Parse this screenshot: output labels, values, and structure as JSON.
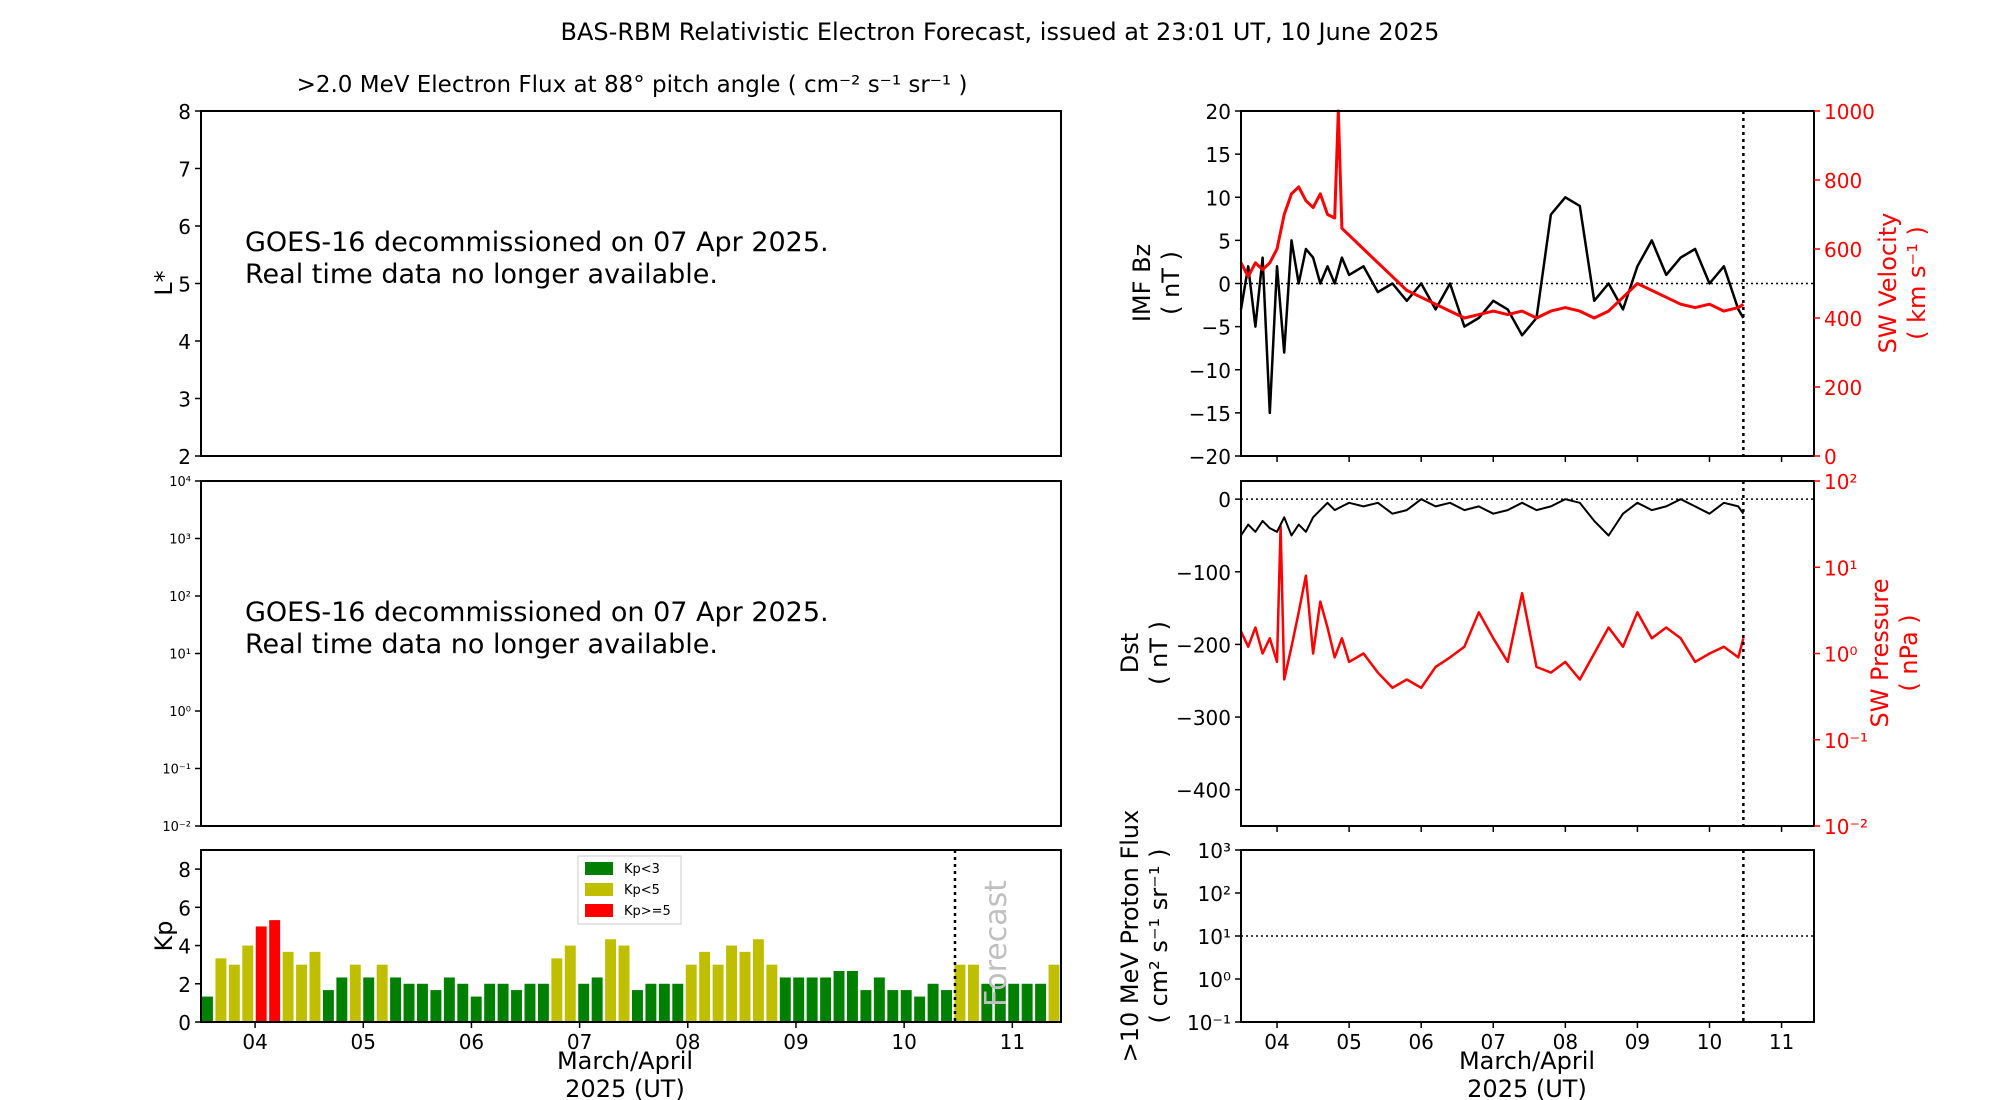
{
  "figure": {
    "title": "BAS-RBM Relativistic Electron Forecast, issued at 23:01 UT, 10 June 2025",
    "colors": {
      "black": "#000000",
      "red": "#ff0000",
      "green": "#008000",
      "yellow": "#bfbf00",
      "annotation": "#c0c0c0"
    }
  },
  "chart_data": [
    {
      "id": "flux_map",
      "type": "heatmap",
      "title": ">2.0 MeV Electron Flux at 88° pitch angle ( cm⁻² s⁻¹ sr⁻¹ )",
      "ylabel": "L*",
      "ylim": [
        2,
        8
      ],
      "yticks": [
        "2",
        "3",
        "4",
        "5",
        "6",
        "7",
        "8"
      ],
      "message": [
        "GOES-16 decommissioned on 07 Apr 2025.",
        "Real time data no longer available."
      ]
    },
    {
      "id": "flux_log",
      "type": "line",
      "yscale": "log",
      "ylim": [
        0.01,
        10000
      ],
      "yticks": [
        "10⁻²",
        "10⁻¹",
        "10⁰",
        "10¹",
        "10²",
        "10³",
        "10⁴"
      ],
      "message": [
        "GOES-16 decommissioned on 07 Apr 2025.",
        "Real time data no longer available."
      ]
    },
    {
      "id": "kp",
      "type": "bar",
      "ylabel": "Kp",
      "ylim": [
        0,
        9
      ],
      "yticks": [
        "0",
        "2",
        "4",
        "6",
        "8"
      ],
      "xlim": [
        3.5,
        11.45
      ],
      "xticks": [
        "04",
        "05",
        "06",
        "07",
        "08",
        "09",
        "10",
        "11"
      ],
      "xlabel": [
        "March/April",
        "2025 (UT)"
      ],
      "forecast_start": 10.47,
      "annotation": "Forecast",
      "legend": {
        "placement": "upper-center",
        "entries": [
          "Kp<3",
          "Kp<5",
          "Kp>=5"
        ]
      },
      "values": [
        1.33,
        3.33,
        3.0,
        4.0,
        5.0,
        5.33,
        3.67,
        3.0,
        3.67,
        1.67,
        2.33,
        3.0,
        2.33,
        3.0,
        2.33,
        2.0,
        2.0,
        1.67,
        2.33,
        2.0,
        1.33,
        2.0,
        2.0,
        1.67,
        2.0,
        2.0,
        3.33,
        4.0,
        2.0,
        2.33,
        4.33,
        4.0,
        1.67,
        2.0,
        2.0,
        2.0,
        3.0,
        3.67,
        3.0,
        4.0,
        3.67,
        4.33,
        3.0,
        2.33,
        2.33,
        2.33,
        2.33,
        2.67,
        2.67,
        1.67,
        2.33,
        1.67,
        1.67,
        1.33,
        2.0,
        1.67,
        3.0,
        3.0,
        2.0,
        2.0,
        2.0,
        2.0,
        2.0,
        3.0
      ]
    },
    {
      "id": "imf_sw",
      "type": "line",
      "ylabel": [
        "IMF Bz",
        "( nT )"
      ],
      "ylim": [
        -20,
        20
      ],
      "yticks": [
        "−20",
        "−15",
        "−10",
        "−5",
        "0",
        "5",
        "10",
        "15",
        "20"
      ],
      "y2label": [
        "SW Velocity",
        "( km s⁻¹ )"
      ],
      "y2lim": [
        0,
        1000
      ],
      "y2ticks": [
        "0",
        "200",
        "400",
        "600",
        "800",
        "1000"
      ],
      "xlim": [
        3.5,
        11.45
      ],
      "forecast_start": 10.47,
      "series": [
        {
          "role": "bz",
          "color": "#000000",
          "x": [
            3.5,
            3.6,
            3.7,
            3.8,
            3.9,
            4.0,
            4.1,
            4.2,
            4.3,
            4.4,
            4.5,
            4.6,
            4.7,
            4.8,
            4.9,
            5.0,
            5.2,
            5.4,
            5.6,
            5.8,
            6.0,
            6.2,
            6.4,
            6.6,
            6.8,
            7.0,
            7.2,
            7.4,
            7.6,
            7.8,
            8.0,
            8.2,
            8.4,
            8.6,
            8.8,
            9.0,
            9.2,
            9.4,
            9.6,
            9.8,
            10.0,
            10.2,
            10.4,
            10.47
          ],
          "y": [
            -3,
            2,
            -5,
            3,
            -15,
            2,
            -8,
            5,
            0,
            4,
            3,
            0,
            2,
            0,
            3,
            1,
            2,
            -1,
            0,
            -2,
            0,
            -3,
            0,
            -5,
            -4,
            -2,
            -3,
            -6,
            -4,
            8,
            10,
            9,
            -2,
            0,
            -3,
            2,
            5,
            1,
            3,
            4,
            0,
            2,
            -3,
            -4
          ]
        },
        {
          "role": "velocity",
          "color": "#ff0000",
          "x": [
            3.5,
            3.6,
            3.7,
            3.8,
            3.9,
            4.0,
            4.1,
            4.2,
            4.3,
            4.4,
            4.5,
            4.6,
            4.7,
            4.8,
            4.85,
            4.9,
            5.0,
            5.2,
            5.4,
            5.6,
            5.8,
            6.0,
            6.2,
            6.4,
            6.6,
            6.8,
            7.0,
            7.2,
            7.4,
            7.6,
            7.8,
            8.0,
            8.2,
            8.4,
            8.6,
            8.8,
            9.0,
            9.2,
            9.4,
            9.6,
            9.8,
            10.0,
            10.2,
            10.4,
            10.47
          ],
          "y": [
            560,
            520,
            560,
            540,
            560,
            600,
            700,
            760,
            780,
            740,
            720,
            760,
            700,
            690,
            1000,
            660,
            640,
            600,
            560,
            520,
            480,
            460,
            440,
            420,
            400,
            410,
            420,
            410,
            420,
            400,
            420,
            430,
            420,
            400,
            420,
            460,
            500,
            480,
            460,
            440,
            430,
            440,
            420,
            430,
            440
          ]
        }
      ]
    },
    {
      "id": "dst_pressure",
      "type": "line",
      "ylabel": [
        "Dst",
        "( nT )"
      ],
      "ylim": [
        -450,
        25
      ],
      "yticks": [
        "−400",
        "−300",
        "−200",
        "−100",
        "0"
      ],
      "y2label": [
        "SW Pressure",
        "( nPa )"
      ],
      "y2scale": "log",
      "y2lim": [
        0.01,
        100
      ],
      "y2ticks": [
        "10⁻²",
        "10⁻¹",
        "10⁰",
        "10¹",
        "10²"
      ],
      "xlim": [
        3.5,
        11.45
      ],
      "forecast_start": 10.47,
      "series": [
        {
          "role": "dst",
          "color": "#000000",
          "x": [
            3.5,
            3.6,
            3.7,
            3.8,
            3.9,
            4.0,
            4.1,
            4.2,
            4.3,
            4.4,
            4.5,
            4.6,
            4.7,
            4.8,
            4.9,
            5.0,
            5.2,
            5.4,
            5.6,
            5.8,
            6.0,
            6.2,
            6.4,
            6.6,
            6.8,
            7.0,
            7.2,
            7.4,
            7.6,
            7.8,
            8.0,
            8.2,
            8.4,
            8.6,
            8.8,
            9.0,
            9.2,
            9.4,
            9.6,
            9.8,
            10.0,
            10.2,
            10.4,
            10.47
          ],
          "y": [
            -50,
            -35,
            -45,
            -30,
            -40,
            -45,
            -25,
            -50,
            -35,
            -45,
            -25,
            -15,
            -5,
            -15,
            -10,
            -5,
            -10,
            -5,
            -20,
            -15,
            0,
            -10,
            -5,
            -15,
            -10,
            -20,
            -15,
            -5,
            -15,
            -10,
            0,
            -5,
            -30,
            -50,
            -20,
            -5,
            -15,
            -10,
            0,
            -10,
            -20,
            -5,
            -10,
            -20
          ]
        },
        {
          "role": "pressure",
          "color": "#ff0000",
          "x": [
            3.5,
            3.6,
            3.7,
            3.8,
            3.9,
            4.0,
            4.05,
            4.1,
            4.2,
            4.3,
            4.4,
            4.5,
            4.6,
            4.7,
            4.8,
            4.9,
            5.0,
            5.2,
            5.4,
            5.6,
            5.8,
            6.0,
            6.2,
            6.4,
            6.6,
            6.8,
            7.0,
            7.2,
            7.4,
            7.6,
            7.8,
            8.0,
            8.2,
            8.4,
            8.6,
            8.8,
            9.0,
            9.2,
            9.4,
            9.6,
            9.8,
            10.0,
            10.2,
            10.4,
            10.47
          ],
          "y": [
            1.8,
            1.2,
            2.0,
            1.0,
            1.5,
            0.8,
            30,
            0.5,
            1.2,
            3.0,
            8.0,
            1.0,
            4.0,
            2.0,
            0.9,
            1.5,
            0.8,
            1.0,
            0.6,
            0.4,
            0.5,
            0.4,
            0.7,
            0.9,
            1.2,
            3.0,
            1.5,
            0.8,
            5.0,
            0.7,
            0.6,
            0.8,
            0.5,
            1.0,
            2.0,
            1.2,
            3.0,
            1.5,
            2.0,
            1.5,
            0.8,
            1.0,
            1.2,
            0.9,
            1.5
          ]
        }
      ]
    },
    {
      "id": "proton",
      "type": "line",
      "ylabel": [
        ">10 MeV Proton Flux",
        "( cm² s⁻¹ sr⁻¹ )"
      ],
      "yscale": "log",
      "ylim": [
        0.1,
        1000
      ],
      "yticks": [
        "10⁻¹",
        "10⁰",
        "10¹",
        "10²",
        "10³"
      ],
      "xlim": [
        3.5,
        11.45
      ],
      "xticks": [
        "04",
        "05",
        "06",
        "07",
        "08",
        "09",
        "10",
        "11"
      ],
      "xlabel": [
        "March/April",
        "2025 (UT)"
      ],
      "threshold": 10,
      "forecast_start": 10.47
    }
  ]
}
